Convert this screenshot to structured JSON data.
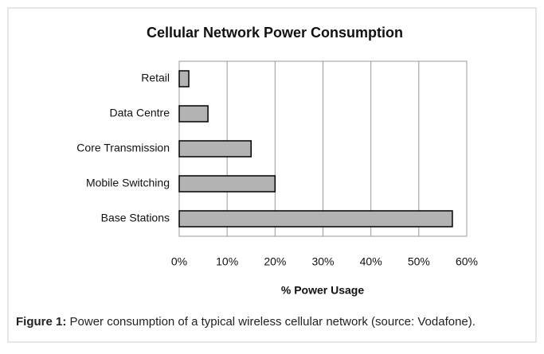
{
  "chart_data": {
    "type": "hbar",
    "title": "Cellular Network Power Consumption",
    "x_label": "% Power Usage",
    "categories": [
      "Retail",
      "Data Centre",
      "Core Transmission",
      "Mobile Switching",
      "Base Stations"
    ],
    "values": [
      2,
      6,
      15,
      20,
      57
    ],
    "color": "#b3b3b3",
    "xlim": [
      0,
      60
    ],
    "xticks": [
      {
        "value": 0,
        "label": "0%"
      },
      {
        "value": 10,
        "label": "10%"
      },
      {
        "value": 20,
        "label": "20%"
      },
      {
        "value": 30,
        "label": "30%"
      },
      {
        "value": 40,
        "label": "40%"
      },
      {
        "value": 50,
        "label": "50%"
      },
      {
        "value": 60,
        "label": "60%"
      }
    ],
    "grid": true
  },
  "caption": {
    "label": "Figure 1:",
    "text": "Power consumption of a typical wireless cellular network (source: Vodafone)."
  }
}
